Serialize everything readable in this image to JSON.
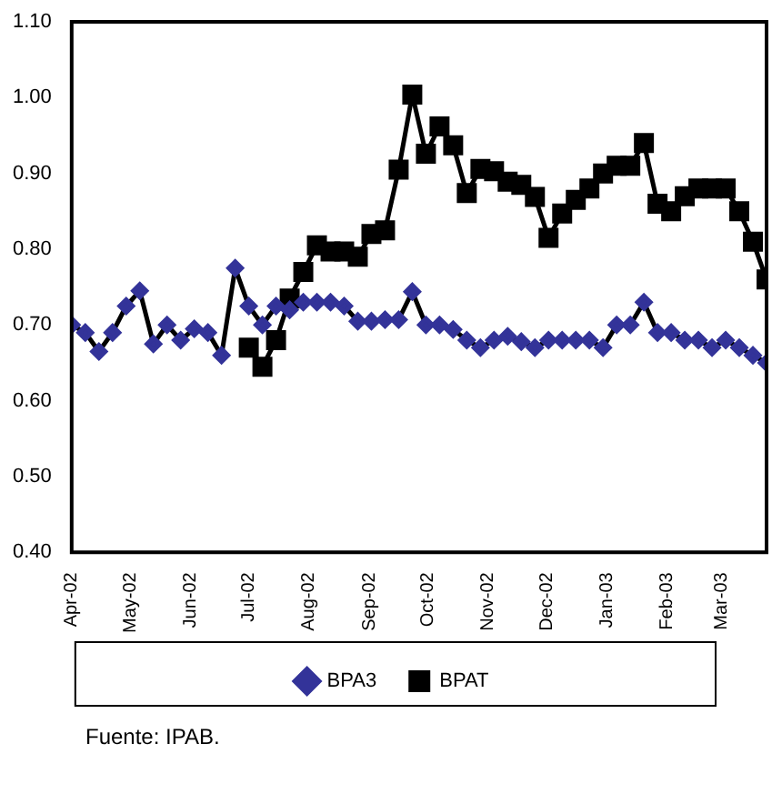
{
  "chart_data": {
    "type": "line",
    "x": [
      "2002-04-01",
      "2002-04-08",
      "2002-04-15",
      "2002-04-22",
      "2002-04-29",
      "2002-05-06",
      "2002-05-13",
      "2002-05-20",
      "2002-05-27",
      "2002-06-03",
      "2002-06-10",
      "2002-06-17",
      "2002-06-24",
      "2002-07-01",
      "2002-07-08",
      "2002-07-15",
      "2002-07-22",
      "2002-07-29",
      "2002-08-05",
      "2002-08-12",
      "2002-08-19",
      "2002-08-26",
      "2002-09-02",
      "2002-09-09",
      "2002-09-16",
      "2002-09-23",
      "2002-09-30",
      "2002-10-07",
      "2002-10-14",
      "2002-10-21",
      "2002-10-28",
      "2002-11-04",
      "2002-11-11",
      "2002-11-18",
      "2002-11-25",
      "2002-12-02",
      "2002-12-09",
      "2002-12-16",
      "2002-12-23",
      "2002-12-30",
      "2003-01-06",
      "2003-01-13",
      "2003-01-20",
      "2003-01-27",
      "2003-02-03",
      "2003-02-10",
      "2003-02-17",
      "2003-02-24",
      "2003-03-03",
      "2003-03-10",
      "2003-03-17",
      "2003-03-24"
    ],
    "series": [
      {
        "name": "BPA3",
        "color": "#333399",
        "marker": "diamond",
        "values": [
          0.7,
          0.69,
          0.665,
          0.69,
          0.725,
          0.745,
          0.675,
          0.7,
          0.68,
          0.695,
          0.69,
          0.66,
          0.775,
          0.725,
          0.7,
          0.725,
          0.72,
          0.73,
          0.73,
          0.73,
          0.725,
          0.705,
          0.705,
          0.707,
          0.707,
          0.744,
          0.7,
          0.7,
          0.694,
          0.68,
          0.67,
          0.68,
          0.685,
          0.678,
          0.67,
          0.68,
          0.68,
          0.68,
          0.68,
          0.67,
          0.7,
          0.7,
          0.73,
          0.69,
          0.69,
          0.68,
          0.68,
          0.67,
          0.68,
          0.67,
          0.66,
          0.65
        ]
      },
      {
        "name": "BPAT",
        "color": "#000000",
        "marker": "square",
        "values": [
          null,
          null,
          null,
          null,
          null,
          null,
          null,
          null,
          null,
          null,
          null,
          null,
          null,
          0.67,
          0.645,
          0.68,
          0.735,
          0.77,
          0.805,
          0.797,
          0.797,
          0.79,
          0.82,
          0.825,
          0.905,
          1.004,
          0.926,
          0.962,
          0.937,
          0.874,
          0.906,
          0.903,
          0.889,
          0.885,
          0.869,
          0.815,
          0.847,
          0.865,
          0.88,
          0.9,
          0.91,
          0.91,
          0.94,
          0.86,
          0.85,
          0.87,
          0.88,
          0.88,
          0.88,
          0.85,
          0.81,
          0.76
        ]
      }
    ],
    "xlim": [
      "2002-04-01",
      "2003-03-24"
    ],
    "xticks": [
      {
        "value": "2002-04-01",
        "label": "Apr-02"
      },
      {
        "value": "2002-05-01",
        "label": "May-02"
      },
      {
        "value": "2002-06-01",
        "label": "Jun-02"
      },
      {
        "value": "2002-07-01",
        "label": "Jul-02"
      },
      {
        "value": "2002-08-01",
        "label": "Aug-02"
      },
      {
        "value": "2002-09-01",
        "label": "Sep-02"
      },
      {
        "value": "2002-10-01",
        "label": "Oct-02"
      },
      {
        "value": "2002-11-01",
        "label": "Nov-02"
      },
      {
        "value": "2002-12-01",
        "label": "Dec-02"
      },
      {
        "value": "2003-01-01",
        "label": "Jan-03"
      },
      {
        "value": "2003-02-01",
        "label": "Feb-03"
      },
      {
        "value": "2003-03-01",
        "label": "Mar-03"
      }
    ],
    "ylim": [
      0.4,
      1.1
    ],
    "yticks": [
      {
        "value": 0.4,
        "label": "0.40"
      },
      {
        "value": 0.5,
        "label": "0.50"
      },
      {
        "value": 0.6,
        "label": "0.60"
      },
      {
        "value": 0.7,
        "label": "0.70"
      },
      {
        "value": 0.8,
        "label": "0.80"
      },
      {
        "value": 0.9,
        "label": "0.90"
      },
      {
        "value": 1.0,
        "label": "1.00"
      },
      {
        "value": 1.1,
        "label": "1.10"
      }
    ],
    "grid": false,
    "legend": "bottom",
    "line_style": "solid",
    "annotations": [
      "Fuente: IPAB."
    ]
  }
}
